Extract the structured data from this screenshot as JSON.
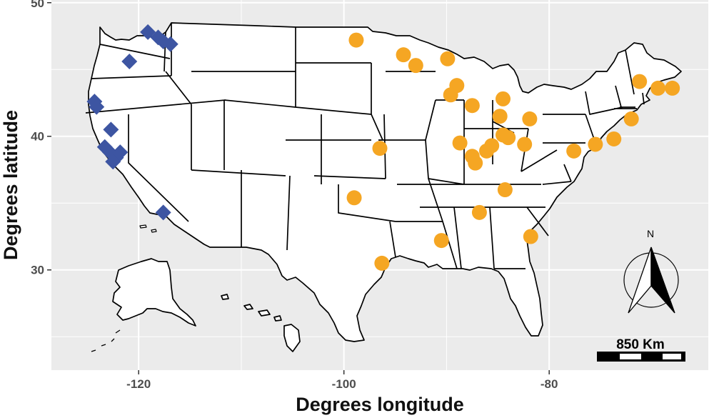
{
  "chart_data": {
    "type": "scatter",
    "xlabel": "Degrees longitude",
    "ylabel": "Degrees latitude",
    "xlim": [
      -128.5,
      -64.5
    ],
    "ylim": [
      22.5,
      50.2
    ],
    "x_ticks": [
      -120,
      -100,
      -80
    ],
    "x_tick_labels": [
      "-120",
      "-100",
      "-80"
    ],
    "y_ticks": [
      30,
      40,
      50
    ],
    "y_tick_labels": [
      "30",
      "40",
      "50"
    ],
    "grid": true,
    "legend": "none",
    "colors": {
      "panel": "#ebebeb",
      "land": "#ffffff",
      "border": "#000000",
      "west": "#3d55a2",
      "east": "#f5a623"
    },
    "series": [
      {
        "marker": "diamond",
        "color": "#3d55a2",
        "points": [
          [
            -119.1,
            47.8
          ],
          [
            -118.1,
            47.4
          ],
          [
            -117.6,
            47.1
          ],
          [
            -116.9,
            46.9
          ],
          [
            -120.9,
            45.6
          ],
          [
            -124.3,
            42.6
          ],
          [
            -124.1,
            42.2
          ],
          [
            -122.7,
            40.5
          ],
          [
            -123.3,
            39.2
          ],
          [
            -122.8,
            38.8
          ],
          [
            -121.8,
            38.8
          ],
          [
            -122.2,
            38.4
          ],
          [
            -122.5,
            38.1
          ],
          [
            -117.6,
            34.3
          ]
        ]
      },
      {
        "marker": "circle",
        "color": "#f5a623",
        "points": [
          [
            -98.8,
            47.2
          ],
          [
            -94.2,
            46.1
          ],
          [
            -93.0,
            45.3
          ],
          [
            -89.9,
            45.8
          ],
          [
            -89.0,
            43.8
          ],
          [
            -89.6,
            43.1
          ],
          [
            -84.5,
            42.8
          ],
          [
            -87.5,
            42.3
          ],
          [
            -84.8,
            41.5
          ],
          [
            -81.9,
            41.3
          ],
          [
            -84.5,
            40.1
          ],
          [
            -84.0,
            39.9
          ],
          [
            -82.4,
            39.4
          ],
          [
            -85.6,
            39.3
          ],
          [
            -86.1,
            38.9
          ],
          [
            -87.5,
            38.5
          ],
          [
            -87.2,
            38.0
          ],
          [
            -88.7,
            39.5
          ],
          [
            -77.6,
            38.9
          ],
          [
            -75.5,
            39.4
          ],
          [
            -73.7,
            39.8
          ],
          [
            -71.2,
            44.1
          ],
          [
            -69.4,
            43.6
          ],
          [
            -68.0,
            43.6
          ],
          [
            -72.0,
            41.3
          ],
          [
            -96.5,
            39.1
          ],
          [
            -99.0,
            35.4
          ],
          [
            -84.3,
            36.0
          ],
          [
            -86.8,
            34.3
          ],
          [
            -90.5,
            32.2
          ],
          [
            -81.8,
            32.5
          ],
          [
            -96.3,
            30.5
          ]
        ]
      }
    ],
    "scale_bar_label": "850 Km",
    "north_label": "N"
  }
}
